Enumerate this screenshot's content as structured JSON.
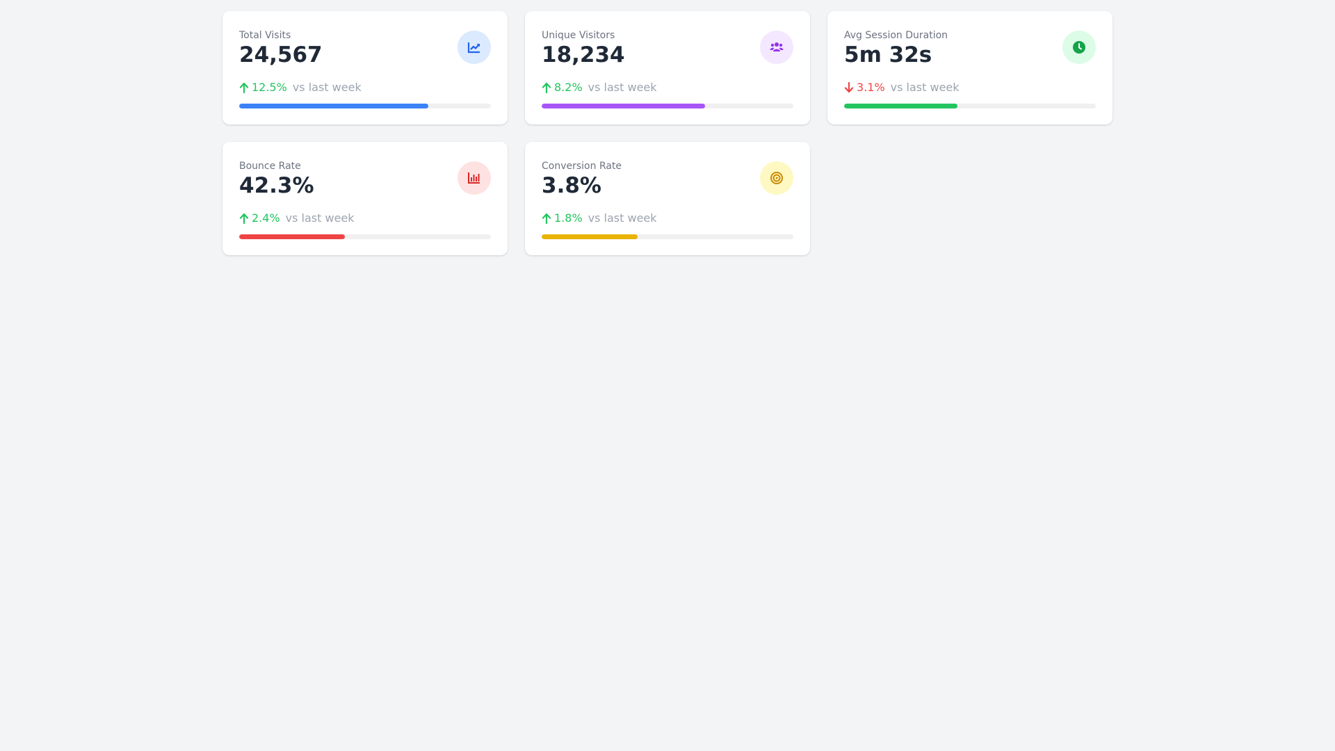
{
  "comparison_label": "vs last week",
  "cards": [
    {
      "label": "Total Visits",
      "value": "24,567",
      "change": "12.5%",
      "direction": "up",
      "progress": 0.75,
      "icon": "chart-line-icon",
      "accent": "#3b82f6",
      "icon_bg": "#dbeafe",
      "icon_color": "#2563eb"
    },
    {
      "label": "Unique Visitors",
      "value": "18,234",
      "change": "8.2%",
      "direction": "up",
      "progress": 0.65,
      "icon": "users-icon",
      "accent": "#a855f7",
      "icon_bg": "#f3e8ff",
      "icon_color": "#9333ea"
    },
    {
      "label": "Avg Session Duration",
      "value": "5m 32s",
      "change": "3.1%",
      "direction": "down",
      "progress": 0.45,
      "icon": "clock-icon",
      "accent": "#22c55e",
      "icon_bg": "#dcfce7",
      "icon_color": "#16a34a"
    },
    {
      "label": "Bounce Rate",
      "value": "42.3%",
      "change": "2.4%",
      "direction": "up",
      "progress": 0.42,
      "icon": "chart-bar-icon",
      "accent": "#ef4444",
      "icon_bg": "#fee2e2",
      "icon_color": "#dc2626"
    },
    {
      "label": "Conversion Rate",
      "value": "3.8%",
      "change": "1.8%",
      "direction": "up",
      "progress": 0.38,
      "icon": "target-icon",
      "accent": "#eab308",
      "icon_bg": "#fef9c3",
      "icon_color": "#ca8a04"
    }
  ]
}
